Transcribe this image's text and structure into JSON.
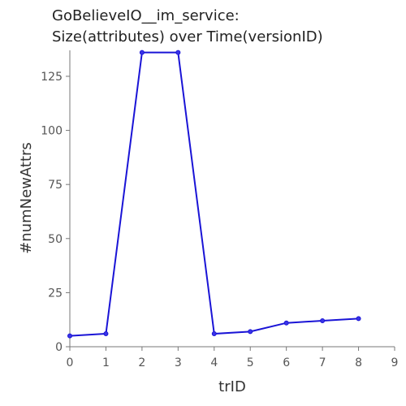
{
  "chart_data": {
    "type": "line",
    "title_lines": [
      "GoBelieveIO__im_service:",
      "Size(attributes) over Time(versionID)"
    ],
    "xlabel": "trID",
    "ylabel": "#numNewAttrs",
    "xlim": [
      0,
      9
    ],
    "ylim": [
      0,
      137
    ],
    "x_ticks": [
      0,
      1,
      2,
      3,
      4,
      5,
      6,
      7,
      8,
      9
    ],
    "y_ticks": [
      0,
      25,
      50,
      75,
      100,
      125
    ],
    "grid": false,
    "series": [
      {
        "x": [
          0,
          1,
          2,
          3,
          4,
          5,
          6,
          7,
          8
        ],
        "values": [
          5,
          6,
          136,
          136,
          6,
          7,
          11,
          12,
          13
        ],
        "color": "#1a14d6"
      }
    ]
  }
}
